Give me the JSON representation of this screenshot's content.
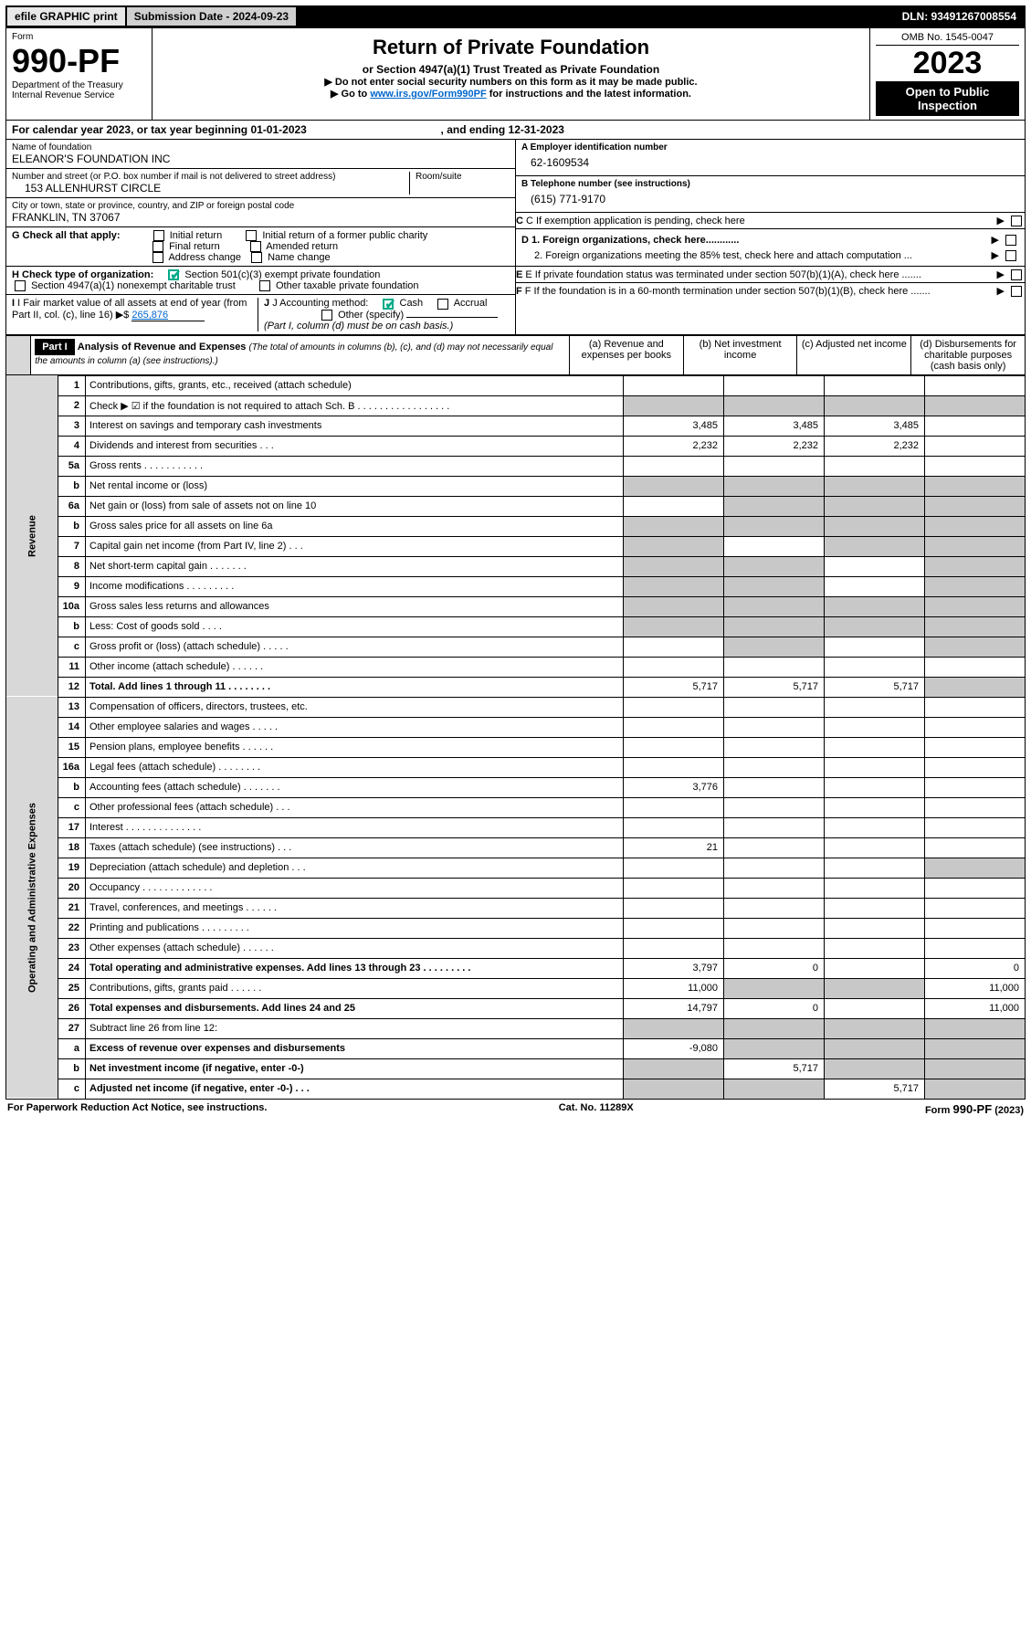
{
  "topbar": {
    "efile": "efile GRAPHIC print",
    "submission": "Submission Date - 2024-09-23",
    "dln": "DLN: 93491267008554"
  },
  "header": {
    "form_word": "Form",
    "form_number": "990-PF",
    "dept": "Department of the Treasury",
    "irs": "Internal Revenue Service",
    "title": "Return of Private Foundation",
    "subtitle": "or Section 4947(a)(1) Trust Treated as Private Foundation",
    "note1": "▶ Do not enter social security numbers on this form as it may be made public.",
    "note2_pre": "▶ Go to ",
    "note2_link": "www.irs.gov/Form990PF",
    "note2_post": " for instructions and the latest information.",
    "omb": "OMB No. 1545-0047",
    "year": "2023",
    "open": "Open to Public Inspection"
  },
  "calendar": {
    "text_pre": "For calendar year 2023, or tax year beginning ",
    "begin": "01-01-2023",
    "mid": " , and ending ",
    "end": "12-31-2023"
  },
  "foundation": {
    "name_label": "Name of foundation",
    "name": "ELEANOR'S FOUNDATION INC",
    "addr_label": "Number and street (or P.O. box number if mail is not delivered to street address)",
    "addr": "153 ALLENHURST CIRCLE",
    "room_label": "Room/suite",
    "city_label": "City or town, state or province, country, and ZIP or foreign postal code",
    "city": "FRANKLIN, TN  37067",
    "ein_label": "A Employer identification number",
    "ein": "62-1609534",
    "phone_label": "B Telephone number (see instructions)",
    "phone": "(615) 771-9170",
    "c_label": "C If exemption application is pending, check here"
  },
  "checks": {
    "g_label": "G Check all that apply:",
    "g_opts": [
      "Initial return",
      "Initial return of a former public charity",
      "Final return",
      "Amended return",
      "Address change",
      "Name change"
    ],
    "h_label": "H Check type of organization:",
    "h_opt1": "Section 501(c)(3) exempt private foundation",
    "h_opt2": "Section 4947(a)(1) nonexempt charitable trust",
    "h_opt3": "Other taxable private foundation",
    "i_label": "I Fair market value of all assets at end of year (from Part II, col. (c), line 16)",
    "i_value": "265,876",
    "j_label": "J Accounting method:",
    "j_cash": "Cash",
    "j_accrual": "Accrual",
    "j_other": "Other (specify)",
    "j_note": "(Part I, column (d) must be on cash basis.)",
    "d1": "D 1. Foreign organizations, check here............",
    "d2": "2. Foreign organizations meeting the 85% test, check here and attach computation ...",
    "e": "E  If private foundation status was terminated under section 507(b)(1)(A), check here .......",
    "f": "F  If the foundation is in a 60-month termination under section 507(b)(1)(B), check here .......",
    "arrow": "▶"
  },
  "part1": {
    "label": "Part I",
    "title": "Analysis of Revenue and Expenses",
    "title_note": "(The total of amounts in columns (b), (c), and (d) may not necessarily equal the amounts in column (a) (see instructions).)",
    "col_a": "(a)   Revenue and expenses per books",
    "col_b": "(b)   Net investment income",
    "col_c": "(c)   Adjusted net income",
    "col_d": "(d)   Disbursements for charitable purposes (cash basis only)"
  },
  "revenue_label": "Revenue",
  "expenses_label": "Operating and Administrative Expenses",
  "rows": [
    {
      "n": "1",
      "d": "",
      "a": "",
      "b": "",
      "c": "",
      "grey": []
    },
    {
      "n": "2",
      "d": "",
      "a": "",
      "b": "",
      "c": "",
      "grey": [
        "a",
        "b",
        "c",
        "d"
      ]
    },
    {
      "n": "3",
      "d": "",
      "a": "3,485",
      "b": "3,485",
      "c": "3,485",
      "grey": []
    },
    {
      "n": "4",
      "d": "",
      "a": "2,232",
      "b": "2,232",
      "c": "2,232",
      "grey": []
    },
    {
      "n": "5a",
      "d": "",
      "a": "",
      "b": "",
      "c": "",
      "grey": []
    },
    {
      "n": "b",
      "d": "",
      "a": "",
      "b": "",
      "c": "",
      "grey": [
        "a",
        "b",
        "c",
        "d"
      ]
    },
    {
      "n": "6a",
      "d": "",
      "a": "",
      "b": "",
      "c": "",
      "grey": [
        "b",
        "c",
        "d"
      ]
    },
    {
      "n": "b",
      "d": "",
      "a": "",
      "b": "",
      "c": "",
      "grey": [
        "a",
        "b",
        "c",
        "d"
      ]
    },
    {
      "n": "7",
      "d": "",
      "a": "",
      "b": "",
      "c": "",
      "grey": [
        "a",
        "c",
        "d"
      ]
    },
    {
      "n": "8",
      "d": "",
      "a": "",
      "b": "",
      "c": "",
      "grey": [
        "a",
        "b",
        "d"
      ]
    },
    {
      "n": "9",
      "d": "",
      "a": "",
      "b": "",
      "c": "",
      "grey": [
        "a",
        "b",
        "d"
      ]
    },
    {
      "n": "10a",
      "d": "",
      "a": "",
      "b": "",
      "c": "",
      "grey": [
        "a",
        "b",
        "c",
        "d"
      ]
    },
    {
      "n": "b",
      "d": "",
      "a": "",
      "b": "",
      "c": "",
      "grey": [
        "a",
        "b",
        "c",
        "d"
      ]
    },
    {
      "n": "c",
      "d": "",
      "a": "",
      "b": "",
      "c": "",
      "grey": [
        "b",
        "d"
      ]
    },
    {
      "n": "11",
      "d": "",
      "a": "",
      "b": "",
      "c": "",
      "grey": []
    },
    {
      "n": "12",
      "d": "",
      "a": "5,717",
      "b": "5,717",
      "c": "5,717",
      "grey": [
        "d"
      ],
      "bold": true
    },
    {
      "n": "13",
      "d": "",
      "a": "",
      "b": "",
      "c": "",
      "grey": []
    },
    {
      "n": "14",
      "d": "",
      "a": "",
      "b": "",
      "c": "",
      "grey": []
    },
    {
      "n": "15",
      "d": "",
      "a": "",
      "b": "",
      "c": "",
      "grey": []
    },
    {
      "n": "16a",
      "d": "",
      "a": "",
      "b": "",
      "c": "",
      "grey": []
    },
    {
      "n": "b",
      "d": "",
      "a": "3,776",
      "b": "",
      "c": "",
      "grey": []
    },
    {
      "n": "c",
      "d": "",
      "a": "",
      "b": "",
      "c": "",
      "grey": []
    },
    {
      "n": "17",
      "d": "",
      "a": "",
      "b": "",
      "c": "",
      "grey": []
    },
    {
      "n": "18",
      "d": "",
      "a": "21",
      "b": "",
      "c": "",
      "grey": []
    },
    {
      "n": "19",
      "d": "",
      "a": "",
      "b": "",
      "c": "",
      "grey": [
        "d"
      ]
    },
    {
      "n": "20",
      "d": "",
      "a": "",
      "b": "",
      "c": "",
      "grey": []
    },
    {
      "n": "21",
      "d": "",
      "a": "",
      "b": "",
      "c": "",
      "grey": []
    },
    {
      "n": "22",
      "d": "",
      "a": "",
      "b": "",
      "c": "",
      "grey": []
    },
    {
      "n": "23",
      "d": "",
      "a": "",
      "b": "",
      "c": "",
      "grey": []
    },
    {
      "n": "24",
      "d": "0",
      "a": "3,797",
      "b": "0",
      "c": "",
      "grey": [],
      "bold": true
    },
    {
      "n": "25",
      "d": "11,000",
      "a": "11,000",
      "b": "",
      "c": "",
      "grey": [
        "b",
        "c"
      ]
    },
    {
      "n": "26",
      "d": "11,000",
      "a": "14,797",
      "b": "0",
      "c": "",
      "grey": [],
      "bold": true
    },
    {
      "n": "27",
      "d": "",
      "a": "",
      "b": "",
      "c": "",
      "grey": [
        "a",
        "b",
        "c",
        "d"
      ]
    },
    {
      "n": "a",
      "d": "",
      "a": "-9,080",
      "b": "",
      "c": "",
      "grey": [
        "b",
        "c",
        "d"
      ],
      "bold": true
    },
    {
      "n": "b",
      "d": "",
      "a": "",
      "b": "5,717",
      "c": "",
      "grey": [
        "a",
        "c",
        "d"
      ],
      "bold": true
    },
    {
      "n": "c",
      "d": "",
      "a": "",
      "b": "",
      "c": "5,717",
      "grey": [
        "a",
        "b",
        "d"
      ],
      "bold": true
    }
  ],
  "footer": {
    "left": "For Paperwork Reduction Act Notice, see instructions.",
    "mid": "Cat. No. 11289X",
    "right": "Form 990-PF (2023)"
  },
  "colors": {
    "grey_cell": "#c8c8c8",
    "vlabel_bg": "#d8d8d8",
    "link": "#0066cc",
    "check_green": "#00aa88"
  }
}
